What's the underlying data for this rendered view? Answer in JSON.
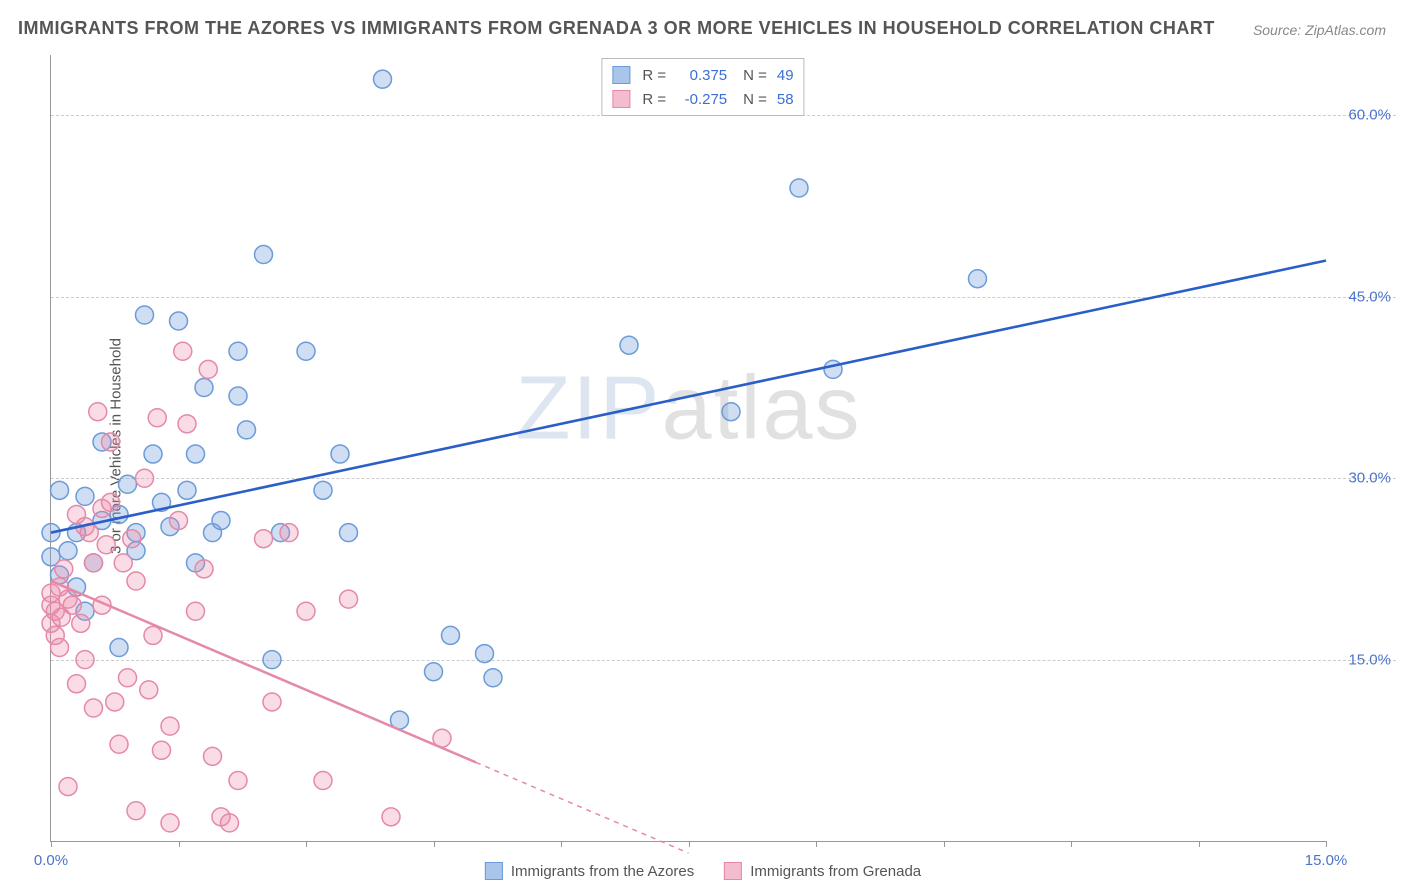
{
  "title": "IMMIGRANTS FROM THE AZORES VS IMMIGRANTS FROM GRENADA 3 OR MORE VEHICLES IN HOUSEHOLD CORRELATION CHART",
  "source": "Source: ZipAtlas.com",
  "ylabel": "3 or more Vehicles in Household",
  "watermark": {
    "zip": "ZIP",
    "atlas": "atlas"
  },
  "chart": {
    "type": "scatter",
    "xlim": [
      0,
      15
    ],
    "ylim": [
      0,
      65
    ],
    "ytick_positions": [
      15,
      30,
      45,
      60
    ],
    "ytick_labels": [
      "15.0%",
      "30.0%",
      "45.0%",
      "60.0%"
    ],
    "xtick_positions": [
      0,
      1.5,
      3,
      4.5,
      6,
      7.5,
      9,
      10.5,
      12,
      13.5,
      15
    ],
    "xtick_labels": {
      "0": "0.0%",
      "15": "15.0%"
    },
    "grid_color": "#cccccc",
    "background_color": "#ffffff",
    "marker_radius": 9,
    "marker_stroke_width": 1.5,
    "line_width": 2.5,
    "series": [
      {
        "name": "Immigrants from the Azores",
        "key": "azores",
        "fill": "rgba(120,160,220,0.35)",
        "stroke": "#6b9bd8",
        "swatch_fill": "#a9c5ea",
        "swatch_border": "#6b9bd8",
        "r_value": "0.375",
        "n_value": "49",
        "trend": {
          "x1": 0,
          "y1": 25.5,
          "x2": 15,
          "y2": 48,
          "solid_until_x": 15
        },
        "points": [
          [
            0,
            25.5
          ],
          [
            0,
            23.5
          ],
          [
            0.1,
            29
          ],
          [
            0.1,
            22
          ],
          [
            0.2,
            24
          ],
          [
            0.3,
            21
          ],
          [
            0.3,
            25.5
          ],
          [
            0.4,
            28.5
          ],
          [
            0.5,
            23
          ],
          [
            0.6,
            33
          ],
          [
            0.6,
            26.5
          ],
          [
            0.8,
            16
          ],
          [
            0.8,
            27
          ],
          [
            0.9,
            29.5
          ],
          [
            1.0,
            24
          ],
          [
            1.0,
            25.5
          ],
          [
            1.1,
            43.5
          ],
          [
            1.2,
            32
          ],
          [
            1.3,
            28
          ],
          [
            1.4,
            26
          ],
          [
            1.5,
            43
          ],
          [
            1.6,
            29
          ],
          [
            1.7,
            32
          ],
          [
            1.8,
            37.5
          ],
          [
            1.9,
            25.5
          ],
          [
            2.0,
            26.5
          ],
          [
            2.2,
            36.8
          ],
          [
            2.2,
            40.5
          ],
          [
            2.3,
            34
          ],
          [
            2.5,
            48.5
          ],
          [
            2.6,
            15
          ],
          [
            2.7,
            25.5
          ],
          [
            3.0,
            40.5
          ],
          [
            3.2,
            29
          ],
          [
            3.4,
            32
          ],
          [
            3.5,
            25.5
          ],
          [
            3.9,
            63
          ],
          [
            4.1,
            10
          ],
          [
            4.5,
            14
          ],
          [
            4.7,
            17
          ],
          [
            5.1,
            15.5
          ],
          [
            5.2,
            13.5
          ],
          [
            6.8,
            41
          ],
          [
            8.0,
            35.5
          ],
          [
            8.8,
            54
          ],
          [
            9.2,
            39
          ],
          [
            10.9,
            46.5
          ],
          [
            0.4,
            19
          ],
          [
            1.7,
            23
          ]
        ]
      },
      {
        "name": "Immigrants from Grenada",
        "key": "grenada",
        "fill": "rgba(235,140,170,0.30)",
        "stroke": "#e589a8",
        "swatch_fill": "#f3bccf",
        "swatch_border": "#e589a8",
        "r_value": "-0.275",
        "n_value": "58",
        "trend": {
          "x1": 0,
          "y1": 21.5,
          "x2": 7.5,
          "y2": -1,
          "solid_until_x": 5.0
        },
        "points": [
          [
            0,
            19.5
          ],
          [
            0,
            18
          ],
          [
            0,
            20.5
          ],
          [
            0.05,
            19
          ],
          [
            0.1,
            21
          ],
          [
            0.1,
            16
          ],
          [
            0.12,
            18.5
          ],
          [
            0.15,
            22.5
          ],
          [
            0.2,
            4.5
          ],
          [
            0.2,
            20
          ],
          [
            0.25,
            19.5
          ],
          [
            0.3,
            27
          ],
          [
            0.3,
            13
          ],
          [
            0.35,
            18
          ],
          [
            0.4,
            26
          ],
          [
            0.4,
            15
          ],
          [
            0.45,
            25.5
          ],
          [
            0.5,
            23
          ],
          [
            0.5,
            11
          ],
          [
            0.55,
            35.5
          ],
          [
            0.6,
            19.5
          ],
          [
            0.6,
            27.5
          ],
          [
            0.65,
            24.5
          ],
          [
            0.7,
            33
          ],
          [
            0.7,
            28
          ],
          [
            0.75,
            11.5
          ],
          [
            0.8,
            8
          ],
          [
            0.85,
            23
          ],
          [
            0.9,
            13.5
          ],
          [
            0.95,
            25
          ],
          [
            1.0,
            21.5
          ],
          [
            1.0,
            2.5
          ],
          [
            1.1,
            30
          ],
          [
            1.15,
            12.5
          ],
          [
            1.2,
            17
          ],
          [
            1.25,
            35
          ],
          [
            1.3,
            7.5
          ],
          [
            1.4,
            1.5
          ],
          [
            1.4,
            9.5
          ],
          [
            1.5,
            26.5
          ],
          [
            1.55,
            40.5
          ],
          [
            1.6,
            34.5
          ],
          [
            1.7,
            19
          ],
          [
            1.8,
            22.5
          ],
          [
            1.85,
            39
          ],
          [
            1.9,
            7
          ],
          [
            2.0,
            2
          ],
          [
            2.1,
            1.5
          ],
          [
            2.2,
            5
          ],
          [
            2.5,
            25
          ],
          [
            2.6,
            11.5
          ],
          [
            2.8,
            25.5
          ],
          [
            3.0,
            19
          ],
          [
            3.2,
            5
          ],
          [
            3.5,
            20
          ],
          [
            4.0,
            2
          ],
          [
            4.6,
            8.5
          ],
          [
            0.05,
            17
          ]
        ]
      }
    ]
  },
  "legend_labels": {
    "r_eq": "R =",
    "n_eq": "N ="
  }
}
